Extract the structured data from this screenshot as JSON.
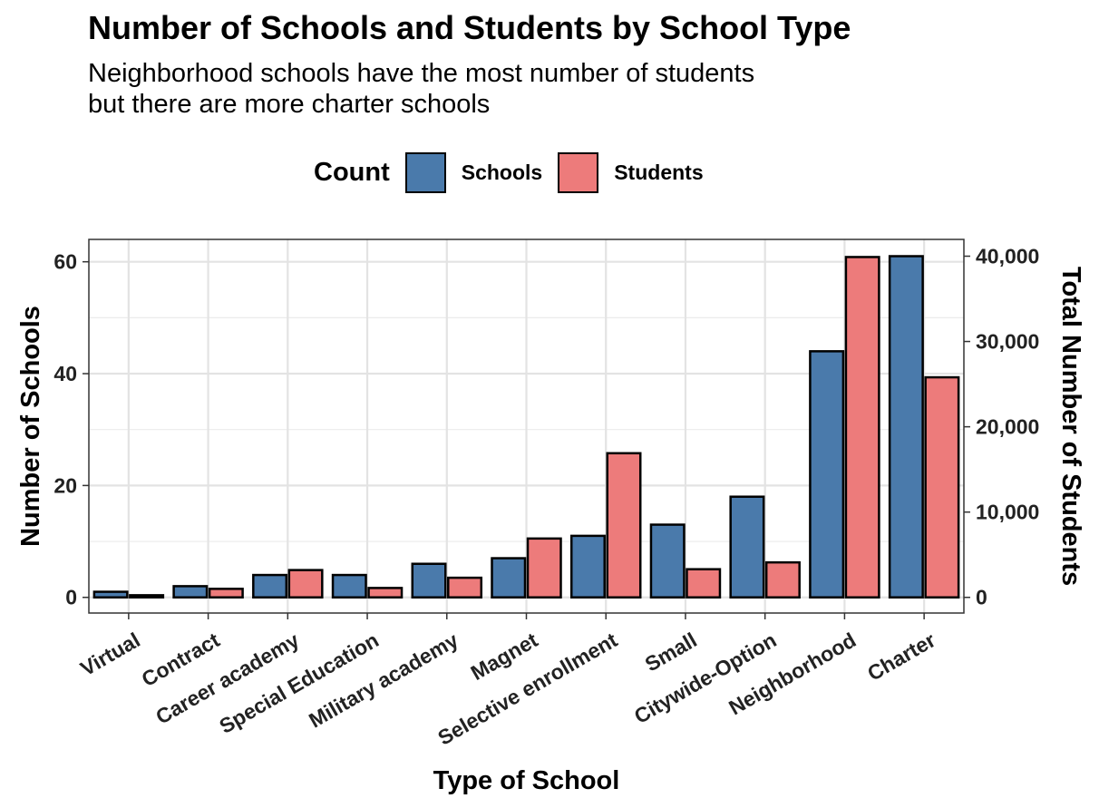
{
  "chart_data": {
    "type": "bar",
    "title": "Number of Schools and Students by School Type",
    "subtitle": [
      "Neighborhood schools have the most number of students",
      "but there are more charter schools"
    ],
    "xlabel": "Type of School",
    "ylabel": "Number of Schools",
    "y2label": "Total Number of Students",
    "legend": {
      "title": "Count",
      "position": "top",
      "items": [
        {
          "label": "Schools",
          "color": "#4a7aab"
        },
        {
          "label": "Students",
          "color": "#ed7b7b"
        }
      ]
    },
    "categories": [
      "Virtual",
      "Contract",
      "Career academy",
      "Special Education",
      "Military academy",
      "Magnet",
      "Selective enrollment",
      "Small",
      "Citywide-Option",
      "Neighborhood",
      "Charter"
    ],
    "series": [
      {
        "name": "Schools",
        "axis": "left",
        "color": "#4a7aab",
        "values": [
          1,
          2,
          4,
          4,
          6,
          7,
          11,
          13,
          18,
          44,
          61
        ]
      },
      {
        "name": "Students",
        "axis": "right",
        "color": "#ed7b7b",
        "values": [
          250,
          1000,
          3200,
          1100,
          2300,
          6900,
          16900,
          3300,
          4100,
          39900,
          25800
        ]
      }
    ],
    "ylim": [
      -2.8,
      64
    ],
    "y2lim": [
      -1836,
      41967
    ],
    "yticks": [
      0,
      20,
      40,
      60
    ],
    "y2ticks": [
      0,
      10000,
      20000,
      30000,
      40000
    ],
    "y2tick_labels": [
      "0",
      "10,000",
      "20,000",
      "30,000",
      "40,000"
    ],
    "grid": true
  }
}
